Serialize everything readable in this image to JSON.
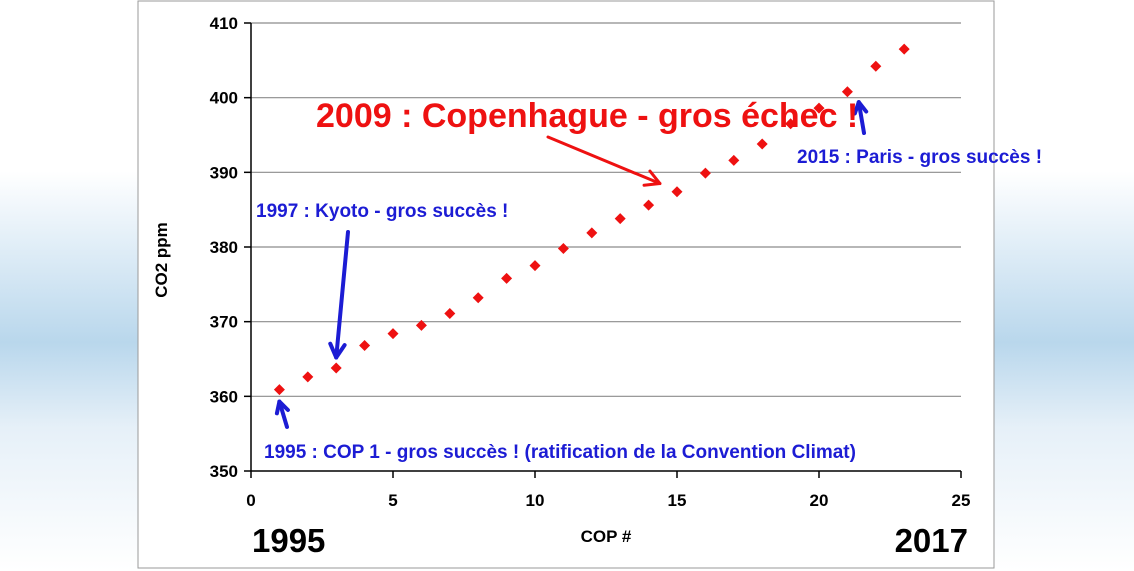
{
  "colors": {
    "point": "#ee1111",
    "annotation_blue": "#1c1cd4",
    "annotation_red": "#ee1111"
  },
  "chart_data": {
    "type": "scatter",
    "title": "",
    "xlabel": "COP #",
    "ylabel": "CO2 ppm",
    "xlim": [
      0,
      25
    ],
    "ylim": [
      350,
      410
    ],
    "xticks": [
      0,
      5,
      10,
      15,
      20,
      25
    ],
    "yticks": [
      350,
      360,
      370,
      380,
      390,
      400,
      410
    ],
    "grid": "horizontal",
    "series": [
      {
        "x": [
          1,
          2,
          3,
          4,
          5,
          6,
          7,
          8,
          9,
          10,
          11,
          12,
          13,
          14,
          15,
          16,
          17,
          18,
          19,
          20,
          21,
          22,
          23
        ],
        "y": [
          360.9,
          362.6,
          363.8,
          366.8,
          368.4,
          369.5,
          371.1,
          373.2,
          375.8,
          377.5,
          379.8,
          381.9,
          383.8,
          385.6,
          387.4,
          389.9,
          391.6,
          393.8,
          396.5,
          398.6,
          400.8,
          404.2,
          406.5
        ]
      }
    ],
    "year_start": "1995",
    "year_end": "2017",
    "annotations": [
      {
        "text": "2009 : Copenhague - gros échec !",
        "color": "red",
        "target_x": 14.4,
        "target_y": 388.5
      },
      {
        "text": "1997 : Kyoto - gros succès !",
        "color": "blue",
        "target_x": 3,
        "target_y": 365.2
      },
      {
        "text": "2015 : Paris - gros succès !",
        "color": "blue",
        "target_x": 21.4,
        "target_y": 399.4
      },
      {
        "text": "1995 : COP 1 - gros succès ! (ratification de la Convention Climat)",
        "color": "blue",
        "target_x": 1,
        "target_y": 359.3
      }
    ]
  }
}
